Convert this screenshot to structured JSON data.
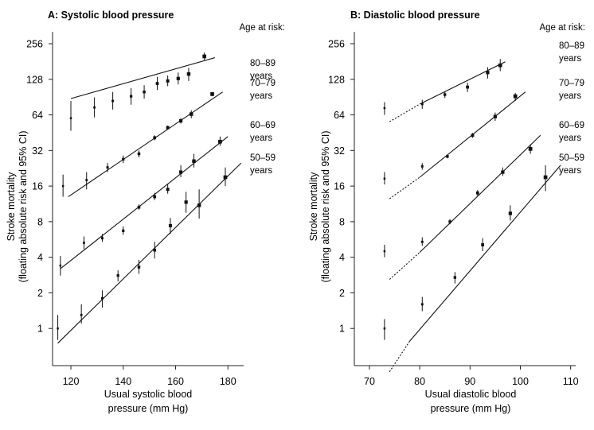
{
  "chart_data": [
    {
      "type": "scatter",
      "title": "A: Systolic blood pressure",
      "xlabel": [
        "Usual systolic blood",
        "pressure (mm Hg)"
      ],
      "ylabel": [
        "Stroke mortality",
        "(floating absolute risk and 95% CI)"
      ],
      "y_scale": "log2",
      "xlim": [
        113,
        186
      ],
      "ylim": [
        0.5,
        256
      ],
      "xticks": [
        "120",
        "140",
        "160",
        "180"
      ],
      "yticks": [
        "1",
        "2",
        "4",
        "8",
        "16",
        "32",
        "64",
        "128",
        "256"
      ],
      "age_header": "Age at risk:",
      "series": [
        {
          "name": [
            "80–89",
            "years"
          ],
          "x": [
            120,
            129,
            136,
            143,
            148,
            153,
            157,
            161,
            165,
            171
          ],
          "y": [
            60,
            74,
            84,
            92,
            100,
            118,
            124,
            130,
            142,
            200
          ],
          "ci_low": [
            47,
            61,
            71,
            78,
            88,
            104,
            112,
            116,
            124,
            186
          ],
          "ci_high": [
            84,
            90,
            100,
            108,
            114,
            134,
            138,
            146,
            160,
            216
          ],
          "fit": [
            [
              120,
              88
            ],
            [
              175,
              195
            ]
          ]
        },
        {
          "name": [
            "70–79",
            "years"
          ],
          "x": [
            117,
            126,
            134,
            140,
            146,
            152,
            157,
            162,
            166,
            174
          ],
          "y": [
            16,
            18,
            23,
            27,
            30,
            41,
            50,
            57,
            65,
            96
          ],
          "ci_low": [
            13,
            15,
            21,
            25,
            28,
            39,
            48,
            54,
            60,
            92
          ],
          "ci_high": [
            20,
            21,
            25,
            29,
            32,
            43,
            52,
            60,
            70,
            100
          ],
          "fit": [
            [
              119,
              13
            ],
            [
              178,
              100
            ]
          ]
        },
        {
          "name": [
            "60–69",
            "years"
          ],
          "x": [
            116,
            125,
            132,
            140,
            146,
            152,
            157,
            162,
            167,
            177
          ],
          "y": [
            3.4,
            5.3,
            5.8,
            6.7,
            10.6,
            13,
            15,
            21,
            26,
            38
          ],
          "ci_low": [
            2.8,
            4.7,
            5.4,
            6.2,
            10.1,
            12.2,
            13.8,
            19,
            23,
            35
          ],
          "ci_high": [
            4.1,
            6,
            6.3,
            7.3,
            11.2,
            14,
            16.5,
            24,
            30,
            42
          ],
          "fit": [
            [
              116,
              3.2
            ],
            [
              180,
              42
            ]
          ]
        },
        {
          "name": [
            "50–59",
            "years"
          ],
          "x": [
            115,
            124,
            132,
            138,
            146,
            152,
            158,
            164,
            169,
            179
          ],
          "y": [
            1,
            1.3,
            1.8,
            2.8,
            3.3,
            4.6,
            7.4,
            11.7,
            11,
            19
          ],
          "ci_low": [
            0.8,
            1.1,
            1.5,
            2.5,
            2.9,
            3.9,
            6.3,
            9.5,
            8.5,
            16
          ],
          "ci_high": [
            1.3,
            1.6,
            2.1,
            3.1,
            3.8,
            5.4,
            8.6,
            14.3,
            15,
            23
          ],
          "fit": [
            [
              115,
              0.75
            ],
            [
              185,
              25
            ]
          ]
        }
      ]
    },
    {
      "type": "scatter",
      "title": "B: Diastolic blood pressure",
      "xlabel": [
        "Usual diastolic blood",
        "pressure (mm Hg)"
      ],
      "ylabel": [
        "Stroke mortality",
        "(floating absolute risk and 95% CI)"
      ],
      "y_scale": "log2",
      "xlim": [
        67,
        111
      ],
      "ylim": [
        0.5,
        256
      ],
      "xticks": [
        "70",
        "80",
        "90",
        "100",
        "110"
      ],
      "yticks": [
        "1",
        "2",
        "4",
        "8",
        "16",
        "32",
        "64",
        "128",
        "256"
      ],
      "age_header": "Age at risk:",
      "series": [
        {
          "name": [
            "80–89",
            "years"
          ],
          "x": [
            73,
            80.5,
            85,
            89.5,
            93.5,
            96
          ],
          "y": [
            73,
            79,
            95,
            110,
            146,
            168
          ],
          "ci_low": [
            64,
            72,
            89,
            100,
            130,
            150
          ],
          "ci_high": [
            82,
            86,
            101,
            120,
            162,
            190
          ],
          "fit": [
            [
              80,
              79
            ],
            [
              97,
              180
            ]
          ],
          "extension": [
            [
              74,
              56
            ],
            [
              80,
              79
            ]
          ]
        },
        {
          "name": [
            "70–79",
            "years"
          ],
          "x": [
            73,
            80.5,
            85.5,
            90.5,
            95,
            99
          ],
          "y": [
            18.5,
            23.5,
            28.5,
            43,
            62,
            92
          ],
          "ci_low": [
            16.5,
            22,
            27.5,
            41,
            57,
            84
          ],
          "ci_high": [
            21,
            25,
            29.5,
            45,
            67,
            98
          ],
          "fit": [
            [
              80,
              19
            ],
            [
              101,
              100
            ]
          ],
          "extension": [
            [
              74,
              12.5
            ],
            [
              80,
              19
            ]
          ]
        },
        {
          "name": [
            "60–69",
            "years"
          ],
          "x": [
            73,
            80.5,
            86,
            91.5,
            96.5,
            102
          ],
          "y": [
            4.5,
            5.4,
            8,
            14,
            21,
            33
          ],
          "ci_low": [
            4,
            5,
            7.6,
            13.2,
            19.5,
            30
          ],
          "ci_high": [
            5.1,
            5.9,
            8.4,
            14.8,
            23,
            36
          ],
          "fit": [
            [
              80,
              4.4
            ],
            [
              104,
              43
            ]
          ],
          "extension": [
            [
              74,
              2.6
            ],
            [
              80,
              4.4
            ]
          ]
        },
        {
          "name": [
            "50–59",
            "years"
          ],
          "x": [
            73,
            80.5,
            87,
            92.5,
            98,
            105
          ],
          "y": [
            1,
            1.6,
            2.7,
            5.1,
            9.4,
            19
          ],
          "ci_low": [
            0.8,
            1.4,
            2.4,
            4.5,
            8.2,
            14.5
          ],
          "ci_high": [
            1.2,
            1.85,
            3,
            5.8,
            11,
            24
          ],
          "fit": [
            [
              78,
              0.78
            ],
            [
              108,
              24
            ]
          ],
          "extension": [
            [
              74,
              0.43
            ],
            [
              78,
              0.78
            ]
          ]
        }
      ]
    }
  ]
}
